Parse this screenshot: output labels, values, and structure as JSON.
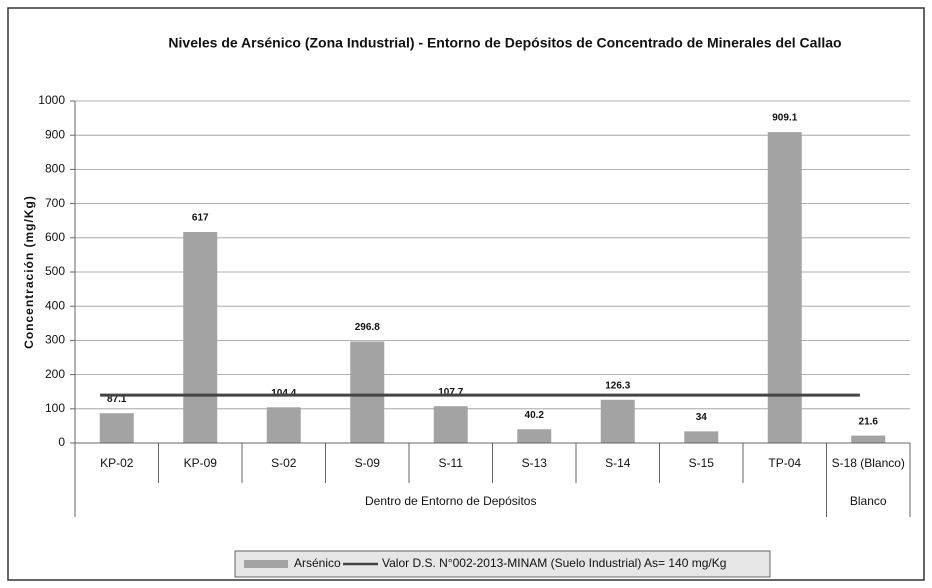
{
  "chart_data": {
    "type": "bar",
    "title": "Niveles de Arsénico (Zona Industrial) - Entorno de Depósitos de Concentrado de Minerales del Callao",
    "y_label": "Concentración (mg/Kg)",
    "categories": [
      "KP-02",
      "KP-09",
      "S-02",
      "S-09",
      "S-11",
      "S-13",
      "S-14",
      "S-15",
      "TP-04",
      "S-18 (Blanco)"
    ],
    "groups": [
      {
        "label": "Dentro de Entorno de Depósitos",
        "span": 9
      },
      {
        "label": "Blanco",
        "span": 1
      }
    ],
    "series": [
      {
        "name": "Arsénico",
        "color": "#a3a3a3",
        "values": [
          87.1,
          617,
          104.4,
          296.8,
          107.7,
          40.2,
          126.3,
          34,
          909.1,
          21.6
        ]
      }
    ],
    "reference_line": {
      "name": "Valor D.S. N°002-2013-MINAM (Suelo Industrial) As= 140 mg/Kg",
      "value": 140,
      "color": "#444444"
    },
    "ylim": [
      0,
      1000
    ],
    "yticks": [
      0,
      100,
      200,
      300,
      400,
      500,
      600,
      700,
      800,
      900,
      1000
    ],
    "grid": true
  }
}
